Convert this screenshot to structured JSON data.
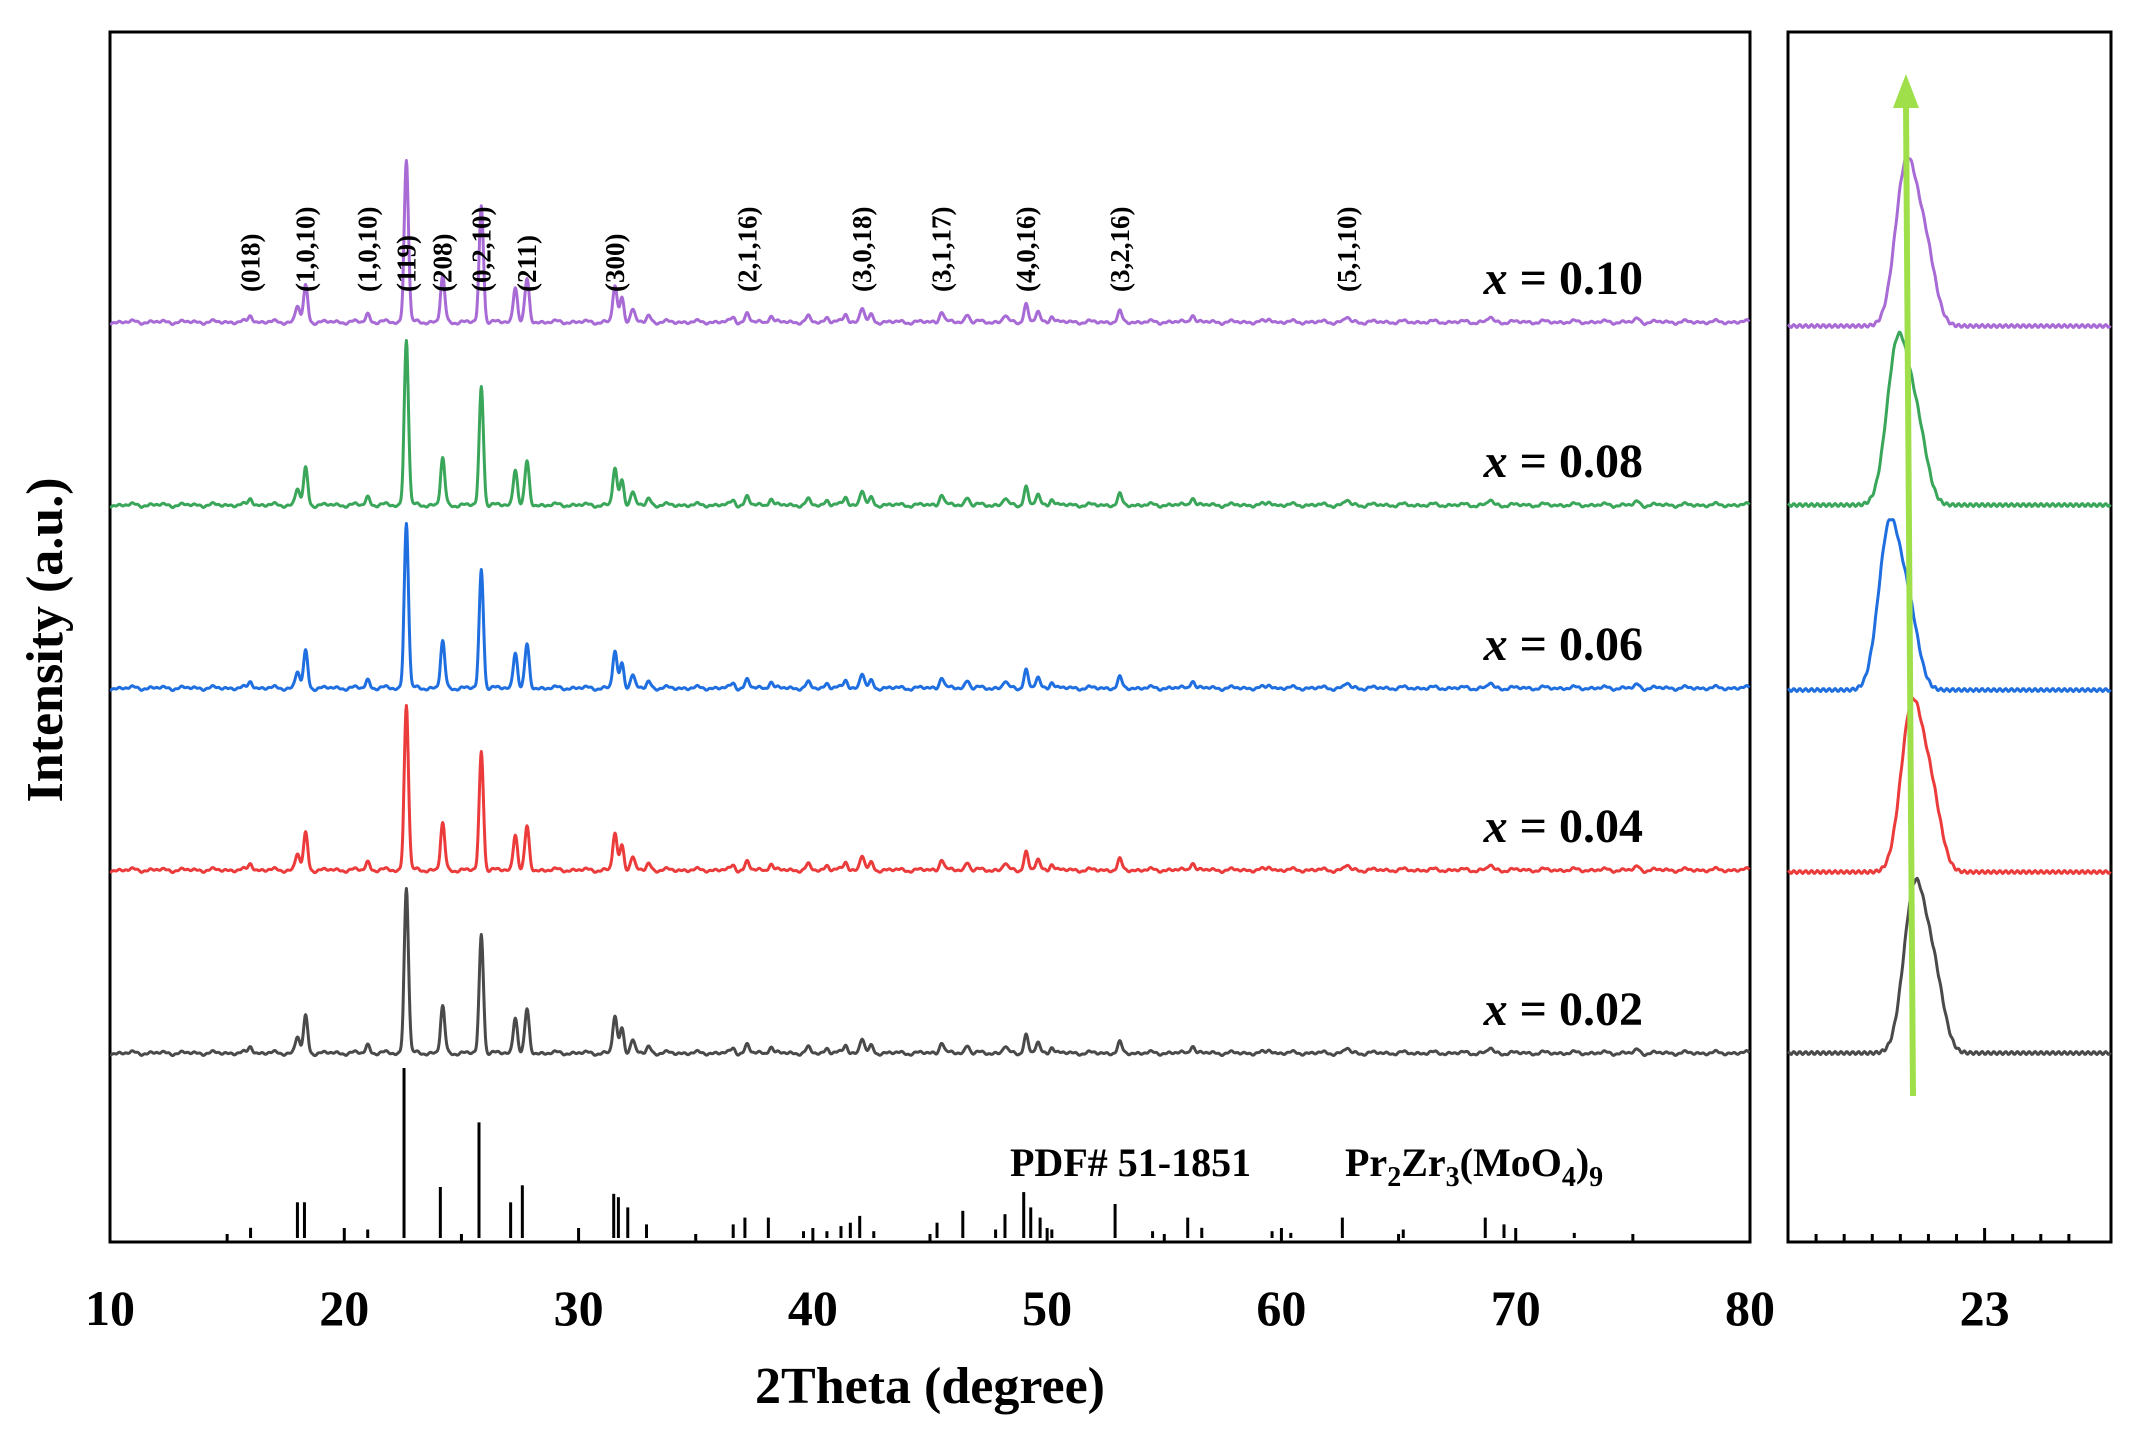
{
  "chart_data": {
    "type": "line",
    "title": "",
    "xlabel": "2Theta (degree)",
    "ylabel": "Intensity (a.u.)",
    "xlim": [
      10,
      80
    ],
    "x_ticks": [
      10,
      20,
      30,
      40,
      50,
      60,
      70,
      80
    ],
    "y_ticks": [],
    "grid": false,
    "series": [
      {
        "name": "x = 0.10",
        "prefix": "x",
        "suffix": " = 0.10",
        "color": "#a86bd6"
      },
      {
        "name": "x = 0.08",
        "prefix": "x",
        "suffix": " = 0.08",
        "color": "#3aa65a"
      },
      {
        "name": "x = 0.06",
        "prefix": "x",
        "suffix": " = 0.06",
        "color": "#1f6fe0"
      },
      {
        "name": "x = 0.04",
        "prefix": "x",
        "suffix": " = 0.04",
        "color": "#ec3b3b"
      },
      {
        "name": "x = 0.02",
        "prefix": "x",
        "suffix": " = 0.02",
        "color": "#4a4a4a"
      }
    ],
    "peaks": [
      {
        "pos": 16.0,
        "rel": 0.04
      },
      {
        "pos": 18.0,
        "rel": 0.1
      },
      {
        "pos": 18.35,
        "rel": 0.22
      },
      {
        "pos": 21.0,
        "rel": 0.05
      },
      {
        "pos": 22.65,
        "rel": 1.0
      },
      {
        "pos": 24.2,
        "rel": 0.28
      },
      {
        "pos": 25.85,
        "rel": 0.72
      },
      {
        "pos": 27.3,
        "rel": 0.22
      },
      {
        "pos": 27.8,
        "rel": 0.26
      },
      {
        "pos": 31.55,
        "rel": 0.22
      },
      {
        "pos": 31.85,
        "rel": 0.15
      },
      {
        "pos": 32.3,
        "rel": 0.08
      },
      {
        "pos": 33.0,
        "rel": 0.04
      },
      {
        "pos": 36.6,
        "rel": 0.03
      },
      {
        "pos": 37.2,
        "rel": 0.05
      },
      {
        "pos": 38.2,
        "rel": 0.04
      },
      {
        "pos": 39.8,
        "rel": 0.03
      },
      {
        "pos": 40.6,
        "rel": 0.03
      },
      {
        "pos": 41.4,
        "rel": 0.05
      },
      {
        "pos": 42.1,
        "rel": 0.09
      },
      {
        "pos": 42.5,
        "rel": 0.04
      },
      {
        "pos": 45.5,
        "rel": 0.07
      },
      {
        "pos": 46.6,
        "rel": 0.05
      },
      {
        "pos": 48.2,
        "rel": 0.04
      },
      {
        "pos": 49.1,
        "rel": 0.11
      },
      {
        "pos": 49.6,
        "rel": 0.06
      },
      {
        "pos": 50.2,
        "rel": 0.04
      },
      {
        "pos": 53.1,
        "rel": 0.06
      },
      {
        "pos": 56.2,
        "rel": 0.05
      },
      {
        "pos": 59.5,
        "rel": 0.02
      },
      {
        "pos": 62.8,
        "rel": 0.03
      },
      {
        "pos": 68.9,
        "rel": 0.03
      },
      {
        "pos": 75.2,
        "rel": 0.02
      }
    ],
    "hkl_labels": [
      {
        "text": "(018)",
        "x": 16.0
      },
      {
        "text": "(1,0,10)",
        "x": 18.35
      },
      {
        "text": "(1,0,10)",
        "x": 21.0
      },
      {
        "text": "(119)",
        "x": 22.65
      },
      {
        "text": "(208)",
        "x": 24.2
      },
      {
        "text": "(0,2,10)",
        "x": 25.85
      },
      {
        "text": "(211)",
        "x": 27.8
      },
      {
        "text": "(300)",
        "x": 31.55
      },
      {
        "text": "(2,1,16)",
        "x": 37.2
      },
      {
        "text": "(3,0,18)",
        "x": 42.1
      },
      {
        "text": "(3,1,17)",
        "x": 45.5
      },
      {
        "text": "(4,0,16)",
        "x": 49.1
      },
      {
        "text": "(3,2,16)",
        "x": 53.1
      },
      {
        "text": "(5,1,10)",
        "x": 62.8
      }
    ],
    "reference": {
      "label": "PDF# 51-1851",
      "formula_parts": [
        {
          "t": "Pr",
          "sub": false
        },
        {
          "t": "2",
          "sub": true
        },
        {
          "t": "Zr",
          "sub": false
        },
        {
          "t": "3",
          "sub": true
        },
        {
          "t": "(MoO",
          "sub": false
        },
        {
          "t": "4",
          "sub": true
        },
        {
          "t": ")",
          "sub": false
        },
        {
          "t": "9",
          "sub": true
        }
      ],
      "sticks": [
        {
          "pos": 16.0,
          "rel": 0.06
        },
        {
          "pos": 18.0,
          "rel": 0.21
        },
        {
          "pos": 18.3,
          "rel": 0.21
        },
        {
          "pos": 21.0,
          "rel": 0.05
        },
        {
          "pos": 22.55,
          "rel": 1.0
        },
        {
          "pos": 24.1,
          "rel": 0.3
        },
        {
          "pos": 25.75,
          "rel": 0.68
        },
        {
          "pos": 27.1,
          "rel": 0.21
        },
        {
          "pos": 27.6,
          "rel": 0.31
        },
        {
          "pos": 31.5,
          "rel": 0.26
        },
        {
          "pos": 31.7,
          "rel": 0.24
        },
        {
          "pos": 32.1,
          "rel": 0.18
        },
        {
          "pos": 32.9,
          "rel": 0.08
        },
        {
          "pos": 36.6,
          "rel": 0.08
        },
        {
          "pos": 37.1,
          "rel": 0.12
        },
        {
          "pos": 38.1,
          "rel": 0.12
        },
        {
          "pos": 39.6,
          "rel": 0.04
        },
        {
          "pos": 40.6,
          "rel": 0.04
        },
        {
          "pos": 41.2,
          "rel": 0.07
        },
        {
          "pos": 41.6,
          "rel": 0.09
        },
        {
          "pos": 42.0,
          "rel": 0.13
        },
        {
          "pos": 42.6,
          "rel": 0.04
        },
        {
          "pos": 45.3,
          "rel": 0.09
        },
        {
          "pos": 46.4,
          "rel": 0.16
        },
        {
          "pos": 47.8,
          "rel": 0.05
        },
        {
          "pos": 48.2,
          "rel": 0.14
        },
        {
          "pos": 49.0,
          "rel": 0.27
        },
        {
          "pos": 49.3,
          "rel": 0.18
        },
        {
          "pos": 49.7,
          "rel": 0.12
        },
        {
          "pos": 50.2,
          "rel": 0.05
        },
        {
          "pos": 52.9,
          "rel": 0.2
        },
        {
          "pos": 54.5,
          "rel": 0.04
        },
        {
          "pos": 56.0,
          "rel": 0.12
        },
        {
          "pos": 56.6,
          "rel": 0.06
        },
        {
          "pos": 59.6,
          "rel": 0.04
        },
        {
          "pos": 60.4,
          "rel": 0.03
        },
        {
          "pos": 62.6,
          "rel": 0.12
        },
        {
          "pos": 65.2,
          "rel": 0.05
        },
        {
          "pos": 68.7,
          "rel": 0.12
        },
        {
          "pos": 69.5,
          "rel": 0.08
        },
        {
          "pos": 72.5,
          "rel": 0.03
        }
      ]
    },
    "zoom_panel": {
      "x_tick_label": "23",
      "x_tick_value": 23,
      "xlim": [
        22.3,
        23.45
      ],
      "arrow_color": "#9fe04a",
      "peak_centers": [
        22.72,
        22.69,
        22.66,
        22.74,
        22.75
      ]
    }
  }
}
